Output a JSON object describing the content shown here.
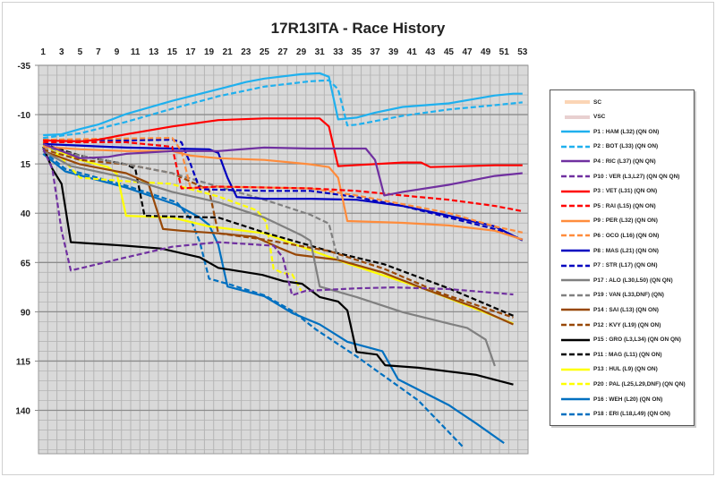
{
  "chart_data": {
    "type": "line",
    "title": "17R13ITA - Race History",
    "xlabel": "",
    "ylabel": "",
    "x_ticks": [
      1,
      3,
      5,
      7,
      9,
      11,
      13,
      15,
      17,
      19,
      21,
      23,
      25,
      27,
      29,
      31,
      33,
      35,
      37,
      39,
      41,
      43,
      45,
      47,
      49,
      51,
      53
    ],
    "y_ticks": [
      -35,
      -10,
      15,
      40,
      65,
      90,
      115,
      140
    ],
    "xlim": [
      0.5,
      53.6
    ],
    "ylim": [
      -35,
      162
    ],
    "y_inverted": true,
    "x_axis_position": "top",
    "grid": true,
    "legend_position": "right",
    "bands": [
      {
        "name": "SC",
        "color": "#fbd5b5"
      },
      {
        "name": "VSC",
        "color": "#e8d0d0"
      }
    ],
    "series": [
      {
        "name": "P1 : HAM (L32) (QN ON)",
        "color": "#1fb0ee",
        "dash": false,
        "points": [
          [
            1,
            0.4
          ],
          [
            3,
            0
          ],
          [
            5,
            -2.7
          ],
          [
            7,
            -5
          ],
          [
            10,
            -10.3
          ],
          [
            15,
            -17
          ],
          [
            20,
            -22.9
          ],
          [
            23,
            -26.5
          ],
          [
            25,
            -28.3
          ],
          [
            29,
            -30.5
          ],
          [
            31,
            -31
          ],
          [
            32,
            -29.2
          ],
          [
            33,
            -7.6
          ],
          [
            35,
            -8.5
          ],
          [
            37,
            -11
          ],
          [
            40,
            -13.9
          ],
          [
            45,
            -15.7
          ],
          [
            50,
            -19.7
          ],
          [
            52,
            -20.6
          ],
          [
            53,
            -20.6
          ]
        ]
      },
      {
        "name": "P2 : BOT (L33) (QN ON)",
        "color": "#1fb0ee",
        "dash": true,
        "points": [
          [
            1,
            1.8
          ],
          [
            5,
            -0.5
          ],
          [
            10,
            -6.3
          ],
          [
            15,
            -13
          ],
          [
            20,
            -19.3
          ],
          [
            25,
            -24.2
          ],
          [
            30,
            -26.9
          ],
          [
            32,
            -27.4
          ],
          [
            33,
            -22.9
          ],
          [
            34,
            -4.5
          ],
          [
            35,
            -4.9
          ],
          [
            40,
            -9.4
          ],
          [
            45,
            -12.6
          ],
          [
            50,
            -14.8
          ],
          [
            53,
            -16.2
          ]
        ]
      },
      {
        "name": "P4 : RIC (L37) (QN QN)",
        "color": "#7030a0",
        "dash": false,
        "points": [
          [
            1,
            4.9
          ],
          [
            5,
            12.1
          ],
          [
            8,
            11.5
          ],
          [
            10,
            9.9
          ],
          [
            15,
            8.5
          ],
          [
            20,
            8.5
          ],
          [
            25,
            6.7
          ],
          [
            30,
            7.2
          ],
          [
            36,
            7.2
          ],
          [
            37,
            13
          ],
          [
            38,
            31
          ],
          [
            40,
            29.2
          ],
          [
            45,
            25.6
          ],
          [
            50,
            21.1
          ],
          [
            53,
            19.7
          ]
        ]
      },
      {
        "name": "P10 : VER (L3,L27) (QN QN QN)",
        "color": "#7030a0",
        "dash": true,
        "points": [
          [
            1,
            7.2
          ],
          [
            2,
            17.5
          ],
          [
            3,
            48.9
          ],
          [
            4,
            69.1
          ],
          [
            10,
            62.4
          ],
          [
            15,
            57
          ],
          [
            20,
            54.7
          ],
          [
            26,
            56.5
          ],
          [
            27,
            62.4
          ],
          [
            28,
            81.6
          ],
          [
            29.5,
            79.4
          ],
          [
            35,
            78.1
          ],
          [
            39,
            77.6
          ],
          [
            45,
            78.5
          ],
          [
            52,
            81.2
          ]
        ]
      },
      {
        "name": "P3 : VET (L31) (QN ON)",
        "color": "#ff0000",
        "dash": false,
        "points": [
          [
            1,
            3.1
          ],
          [
            5,
            3.6
          ],
          [
            7,
            2.7
          ],
          [
            10,
            0
          ],
          [
            15,
            -4
          ],
          [
            20,
            -7.2
          ],
          [
            25,
            -8.1
          ],
          [
            31,
            -8.1
          ],
          [
            32,
            -4
          ],
          [
            33,
            16.1
          ],
          [
            40,
            14.3
          ],
          [
            42,
            14.3
          ],
          [
            43,
            16.6
          ],
          [
            50,
            15.7
          ],
          [
            53,
            15.7
          ]
        ]
      },
      {
        "name": "P5 : RAI (L15) (QN ON)",
        "color": "#ff0000",
        "dash": true,
        "points": [
          [
            1,
            4
          ],
          [
            10,
            4
          ],
          [
            15,
            6.3
          ],
          [
            16,
            27.4
          ],
          [
            20,
            26.5
          ],
          [
            30,
            27.4
          ],
          [
            35,
            28.7
          ],
          [
            40,
            31
          ],
          [
            45,
            33.2
          ],
          [
            50,
            36.3
          ],
          [
            53,
            39
          ]
        ]
      },
      {
        "name": "P9 : PER (L32) (QN ON)",
        "color": "#ff8c3c",
        "dash": false,
        "points": [
          [
            1,
            6.3
          ],
          [
            5,
            7.6
          ],
          [
            10,
            8.5
          ],
          [
            15,
            8.5
          ],
          [
            17,
            10.8
          ],
          [
            20,
            12.1
          ],
          [
            25,
            13
          ],
          [
            30,
            15.2
          ],
          [
            32,
            16.6
          ],
          [
            33,
            22
          ],
          [
            34,
            44
          ],
          [
            40,
            44.9
          ],
          [
            45,
            46.2
          ],
          [
            50,
            48.9
          ],
          [
            53,
            53.4
          ]
        ]
      },
      {
        "name": "P6 : OCO (L16) (QN ON)",
        "color": "#ff8c3c",
        "dash": true,
        "points": [
          [
            1,
            2.7
          ],
          [
            15,
            1.8
          ],
          [
            16,
            8.5
          ],
          [
            17,
            27.4
          ],
          [
            20,
            26.5
          ],
          [
            30,
            27.4
          ],
          [
            35,
            31
          ],
          [
            40,
            35.4
          ],
          [
            45,
            39.9
          ],
          [
            50,
            46.7
          ],
          [
            53,
            49.8
          ]
        ]
      },
      {
        "name": "P8 : MAS (L21) (QN ON)",
        "color": "#0000c0",
        "dash": false,
        "points": [
          [
            1,
            4.9
          ],
          [
            10,
            6.7
          ],
          [
            15,
            7.2
          ],
          [
            19,
            7.6
          ],
          [
            20,
            9.4
          ],
          [
            21,
            22
          ],
          [
            22,
            31.8
          ],
          [
            25,
            32.7
          ],
          [
            30,
            32.7
          ],
          [
            35,
            33.2
          ],
          [
            40,
            36.3
          ],
          [
            45,
            41.3
          ],
          [
            50,
            46.7
          ],
          [
            53,
            53.8
          ]
        ]
      },
      {
        "name": "P7 : STR (L17) (QN ON)",
        "color": "#0000c0",
        "dash": true,
        "points": [
          [
            1,
            2.7
          ],
          [
            10,
            3.1
          ],
          [
            15,
            2.7
          ],
          [
            16,
            4
          ],
          [
            17,
            15.2
          ],
          [
            18,
            27.8
          ],
          [
            25,
            28.7
          ],
          [
            30,
            28.7
          ],
          [
            35,
            31.8
          ],
          [
            40,
            36.3
          ],
          [
            45,
            42.2
          ],
          [
            50,
            48
          ],
          [
            53,
            53.4
          ]
        ]
      },
      {
        "name": "P17 : ALO (L30,L50) (QN QN)",
        "color": "#808080",
        "dash": false,
        "points": [
          [
            1,
            8.5
          ],
          [
            4,
            16.1
          ],
          [
            10,
            22
          ],
          [
            15,
            29.2
          ],
          [
            20,
            34.5
          ],
          [
            25,
            42.2
          ],
          [
            29,
            51.1
          ],
          [
            30,
            54
          ],
          [
            31,
            77.2
          ],
          [
            35,
            82.5
          ],
          [
            40,
            90.2
          ],
          [
            45,
            96
          ],
          [
            47,
            98.2
          ],
          [
            49,
            104.1
          ],
          [
            50,
            117.5
          ]
        ]
      },
      {
        "name": "P19 : VAN (L33,DNF) (QN)",
        "color": "#808080",
        "dash": true,
        "points": [
          [
            1,
            6.3
          ],
          [
            5,
            10.8
          ],
          [
            10,
            15.2
          ],
          [
            15,
            19.7
          ],
          [
            20,
            26.5
          ],
          [
            25,
            33.2
          ],
          [
            28,
            37.7
          ],
          [
            30,
            40.8
          ],
          [
            32,
            45.3
          ],
          [
            33,
            63.7
          ]
        ]
      },
      {
        "name": "P14 : SAI (L13) (QN ON)",
        "color": "#984807",
        "dash": false,
        "points": [
          [
            1,
            8.5
          ],
          [
            5,
            15.2
          ],
          [
            10,
            19.7
          ],
          [
            12.4,
            24.6
          ],
          [
            14,
            48
          ],
          [
            16,
            48.9
          ],
          [
            20,
            50.2
          ],
          [
            24,
            52
          ],
          [
            26.8,
            57.9
          ],
          [
            28.4,
            61
          ],
          [
            33,
            63.7
          ],
          [
            37.8,
            70
          ],
          [
            42.7,
            79
          ],
          [
            48,
            88
          ],
          [
            52,
            96.4
          ]
        ]
      },
      {
        "name": "P12 : KVY (L19) (QN ON)",
        "color": "#984807",
        "dash": true,
        "points": [
          [
            1,
            7.6
          ],
          [
            5,
            13
          ],
          [
            10,
            15.2
          ],
          [
            15,
            19.7
          ],
          [
            19,
            28.3
          ],
          [
            20,
            50.2
          ],
          [
            25,
            53.4
          ],
          [
            32,
            59.2
          ],
          [
            38,
            68.2
          ],
          [
            44,
            80.3
          ],
          [
            52,
            92.9
          ]
        ]
      },
      {
        "name": "P15 : GRO (L3,L34) (QN ON QN)",
        "color": "#000000",
        "dash": false,
        "points": [
          [
            1,
            6.3
          ],
          [
            2,
            17.5
          ],
          [
            3,
            25.1
          ],
          [
            4,
            54.7
          ],
          [
            10,
            56.5
          ],
          [
            13.8,
            57.9
          ],
          [
            18,
            62.4
          ],
          [
            20,
            67.7
          ],
          [
            24.8,
            71.3
          ],
          [
            27.1,
            74.5
          ],
          [
            29.1,
            75.8
          ],
          [
            31,
            82.5
          ],
          [
            33,
            84.8
          ],
          [
            34,
            89.3
          ],
          [
            35,
            110.4
          ],
          [
            37.2,
            111.7
          ],
          [
            38.1,
            117.1
          ],
          [
            41.7,
            118.4
          ],
          [
            48,
            122
          ],
          [
            52,
            126.9
          ]
        ]
      },
      {
        "name": "P11 : MAG (L11) (QN ON)",
        "color": "#000000",
        "dash": true,
        "points": [
          [
            1,
            4.9
          ],
          [
            5,
            10.8
          ],
          [
            10,
            15.2
          ],
          [
            11,
            17.5
          ],
          [
            12,
            41.3
          ],
          [
            16,
            41.8
          ],
          [
            20,
            42.2
          ],
          [
            25,
            49.8
          ],
          [
            32,
            59.2
          ],
          [
            38,
            65.9
          ],
          [
            45,
            78.1
          ],
          [
            52,
            92
          ]
        ]
      },
      {
        "name": "P13 : HUL (L9) (QN ON)",
        "color": "#ffff00",
        "dash": false,
        "points": [
          [
            1,
            5.4
          ],
          [
            5,
            13
          ],
          [
            8,
            16.6
          ],
          [
            9,
            20
          ],
          [
            10,
            41.3
          ],
          [
            15,
            42.2
          ],
          [
            19,
            46.7
          ],
          [
            25,
            50.2
          ],
          [
            34,
            65.5
          ],
          [
            42.7,
            79
          ],
          [
            52,
            96
          ]
        ]
      },
      {
        "name": "P20 : PAL (L25,L29,DNF) (QN QN)",
        "color": "#ffff00",
        "dash": true,
        "points": [
          [
            1,
            4
          ],
          [
            3,
            12
          ],
          [
            5,
            22
          ],
          [
            10,
            23.8
          ],
          [
            14.8,
            25.1
          ],
          [
            20,
            31.5
          ],
          [
            24.2,
            38.6
          ],
          [
            25.2,
            44.4
          ],
          [
            26,
            68.2
          ],
          [
            27,
            70.4
          ],
          [
            28,
            70.9
          ],
          [
            29,
            79.4
          ]
        ]
      },
      {
        "name": "P16 : WEH (L20) (QN ON)",
        "color": "#0070c0",
        "dash": false,
        "points": [
          [
            1,
            9.9
          ],
          [
            3.4,
            18.8
          ],
          [
            10,
            27
          ],
          [
            15.5,
            35.8
          ],
          [
            18,
            42.2
          ],
          [
            19,
            46
          ],
          [
            20,
            56
          ],
          [
            21,
            77.2
          ],
          [
            25,
            82.1
          ],
          [
            28,
            90.6
          ],
          [
            31,
            96.4
          ],
          [
            34,
            105.2
          ],
          [
            37.8,
            110
          ],
          [
            39.5,
            124.3
          ],
          [
            45,
            137.3
          ],
          [
            48,
            146.7
          ],
          [
            51,
            156.6
          ]
        ]
      },
      {
        "name": "P18 : ERI (L18,L49) (QN ON)",
        "color": "#0070c0",
        "dash": true,
        "points": [
          [
            1,
            8.5
          ],
          [
            3.4,
            17.5
          ],
          [
            10,
            26
          ],
          [
            15.5,
            34.5
          ],
          [
            17,
            43
          ],
          [
            18,
            54.7
          ],
          [
            19,
            73.2
          ],
          [
            21,
            75.8
          ],
          [
            25,
            81.6
          ],
          [
            28,
            89.5
          ],
          [
            30.6,
            99
          ],
          [
            35,
            112.6
          ],
          [
            41.7,
            135
          ],
          [
            46.6,
            158.8
          ]
        ]
      }
    ]
  }
}
